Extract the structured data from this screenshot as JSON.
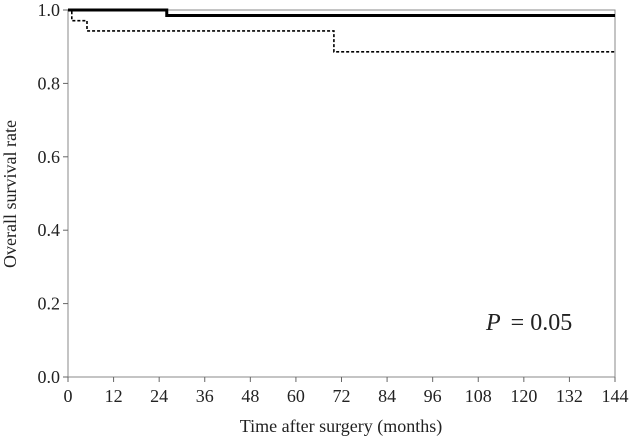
{
  "chart_data": {
    "type": "line",
    "step": "post",
    "xlabel": "Time after surgery (months)",
    "ylabel": "Overall survival rate",
    "annotation": {
      "symbol": "P",
      "text": "= 0.05"
    },
    "xlim": [
      0,
      144
    ],
    "xticks": [
      0,
      12,
      24,
      36,
      48,
      60,
      72,
      84,
      96,
      108,
      120,
      132,
      144
    ],
    "ylim": [
      0,
      1
    ],
    "yticks": [
      {
        "value": 0,
        "label": "0.0"
      },
      0.2,
      0.4,
      0.6,
      0.8,
      {
        "value": 1,
        "label": "1.0"
      }
    ],
    "series": [
      {
        "color": "#000000",
        "width": 3,
        "dash": "none",
        "x": [
          0,
          26,
          144
        ],
        "values": [
          1.0,
          0.985,
          0.985
        ]
      },
      {
        "color": "#000000",
        "width": 1.6,
        "dash": "3 2",
        "x": [
          0,
          1,
          5,
          70,
          144
        ],
        "values": [
          1.0,
          0.971,
          0.943,
          0.886,
          0.886
        ]
      }
    ]
  }
}
